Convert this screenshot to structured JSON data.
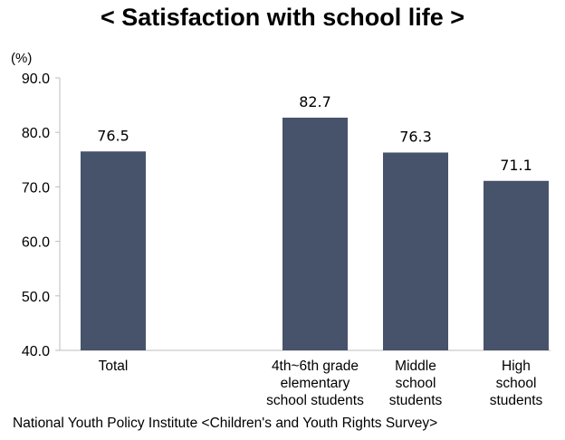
{
  "chart_data": {
    "type": "bar",
    "title": "< Satisfaction with school life >",
    "unit_label": "(%)",
    "categories": [
      [
        "Total"
      ],
      [
        "4th~6th grade",
        "elementary",
        "school students"
      ],
      [
        "Middle",
        "school",
        "students"
      ],
      [
        "High",
        "school",
        "students"
      ]
    ],
    "values": [
      76.5,
      82.7,
      76.3,
      71.1
    ],
    "value_labels": [
      "76.5",
      "82.7",
      "76.3",
      "71.1"
    ],
    "ylim": [
      40.0,
      90.0
    ],
    "yticks": [
      "40.0",
      "50.0",
      "60.0",
      "70.0",
      "80.0",
      "90.0"
    ],
    "bar_color": "#47526b",
    "grid": false
  },
  "source": "National Youth Policy Institute <Children's and Youth Rights Survey>"
}
